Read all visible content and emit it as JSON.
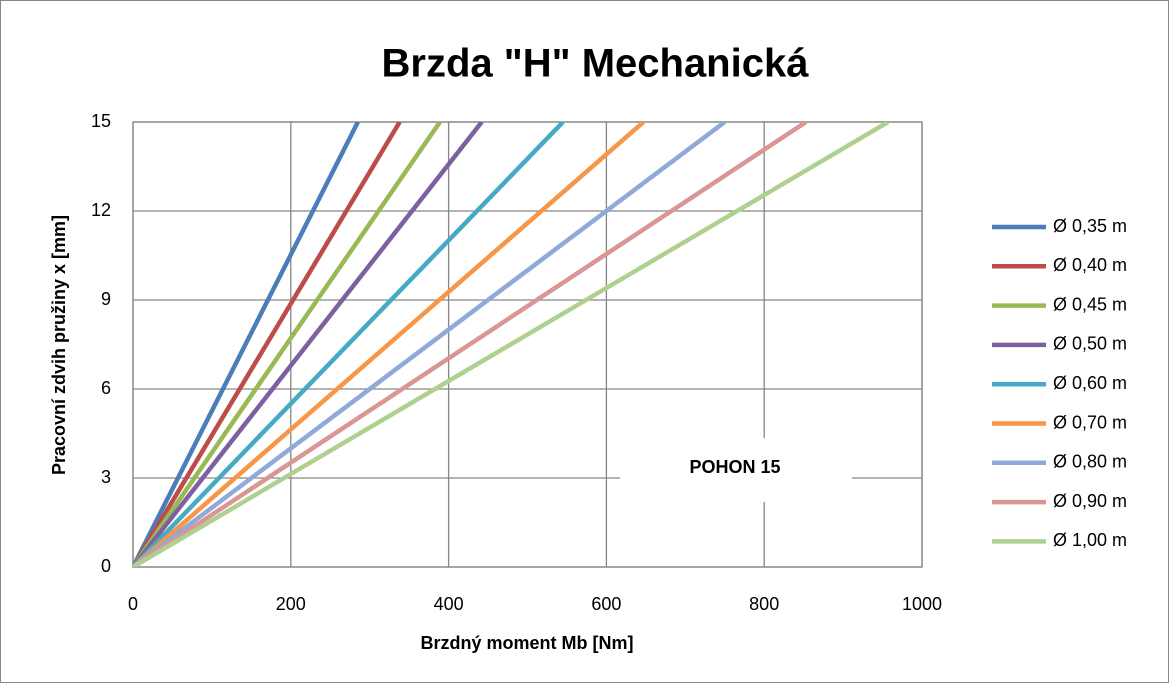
{
  "chart_data": {
    "type": "line",
    "title": "Brzda \"H\" Mechanická",
    "xlabel": "Brzdný moment Mb [Nm]",
    "ylabel": "Pracovní zdvih pružiny x [mm]",
    "annotation": "POHON 15",
    "xlim": [
      0,
      1000
    ],
    "xticks": [
      0,
      200,
      400,
      600,
      800,
      1000
    ],
    "ylim": [
      0,
      15
    ],
    "yticks": [
      0,
      3,
      6,
      9,
      12,
      15
    ],
    "grid": true,
    "legend": "right",
    "series": [
      {
        "name": "Ø 0,35 m",
        "color": "#4a7ebb",
        "x": [
          0,
          285
        ],
        "values": [
          0,
          15
        ]
      },
      {
        "name": "Ø 0,40 m",
        "color": "#be4b48",
        "x": [
          0,
          338
        ],
        "values": [
          0,
          15
        ]
      },
      {
        "name": "Ø 0,45 m",
        "color": "#98b954",
        "x": [
          0,
          389
        ],
        "values": [
          0,
          15
        ]
      },
      {
        "name": "Ø 0,50 m",
        "color": "#7d60a0",
        "x": [
          0,
          442
        ],
        "values": [
          0,
          15
        ]
      },
      {
        "name": "Ø 0,60 m",
        "color": "#46aac5",
        "x": [
          0,
          545
        ],
        "values": [
          0,
          15
        ]
      },
      {
        "name": "Ø 0,70 m",
        "color": "#f79646",
        "x": [
          0,
          647
        ],
        "values": [
          0,
          15
        ]
      },
      {
        "name": "Ø 0,80 m",
        "color": "#8fa9d9",
        "x": [
          0,
          750
        ],
        "values": [
          0,
          15
        ]
      },
      {
        "name": "Ø 0,90 m",
        "color": "#d99694",
        "x": [
          0,
          853
        ],
        "values": [
          0,
          15
        ]
      },
      {
        "name": "Ø 1,00 m",
        "color": "#b0d08f",
        "x": [
          0,
          957
        ],
        "values": [
          0,
          15
        ]
      }
    ]
  }
}
